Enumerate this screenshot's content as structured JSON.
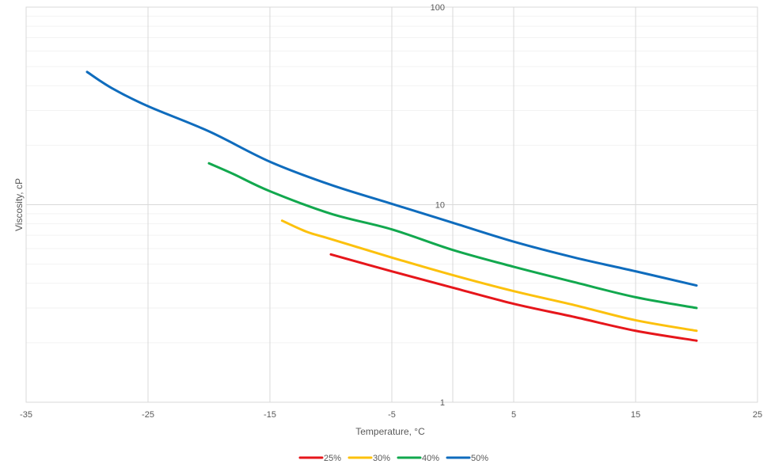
{
  "chart_data": {
    "type": "line",
    "title": "",
    "xlabel": "Temperature, °C",
    "ylabel": "Viscosity, cP",
    "xlim": [
      -35,
      25
    ],
    "ylim": [
      1,
      100
    ],
    "yscale": "log",
    "x_ticks": [
      "-35",
      "-25",
      "-15",
      "-5",
      "5",
      "15",
      "25"
    ],
    "x_tick_values": [
      -35,
      -25,
      -15,
      -5,
      5,
      15,
      25
    ],
    "y_ticks": [
      "1",
      "10",
      "100"
    ],
    "y_tick_values": [
      1,
      10,
      100
    ],
    "y_axis_crosses_x": 0,
    "grid": true,
    "legend_position": "bottom",
    "series": [
      {
        "name": "25%",
        "color": "#e6161b",
        "x": [
          -10,
          -5,
          0,
          5,
          10,
          15,
          20
        ],
        "y": [
          5.6,
          4.6,
          3.8,
          3.15,
          2.7,
          2.3,
          2.05
        ]
      },
      {
        "name": "30%",
        "color": "#fcc10d",
        "x": [
          -14,
          -12,
          -10,
          -5,
          0,
          5,
          10,
          15,
          20
        ],
        "y": [
          8.3,
          7.3,
          6.7,
          5.4,
          4.4,
          3.65,
          3.1,
          2.6,
          2.3
        ]
      },
      {
        "name": "40%",
        "color": "#12a84e",
        "x": [
          -20,
          -18,
          -15,
          -10,
          -5,
          0,
          5,
          10,
          15,
          20
        ],
        "y": [
          16.2,
          14.3,
          11.7,
          9.0,
          7.5,
          5.9,
          4.85,
          4.05,
          3.4,
          3.0
        ]
      },
      {
        "name": "50%",
        "color": "#0f6cbd",
        "x": [
          -30,
          -28,
          -25,
          -20,
          -15,
          -10,
          -5,
          0,
          5,
          10,
          15,
          20
        ],
        "y": [
          47,
          39,
          31.5,
          23.5,
          16.5,
          12.6,
          10.1,
          8.1,
          6.5,
          5.4,
          4.6,
          3.9
        ]
      }
    ]
  }
}
